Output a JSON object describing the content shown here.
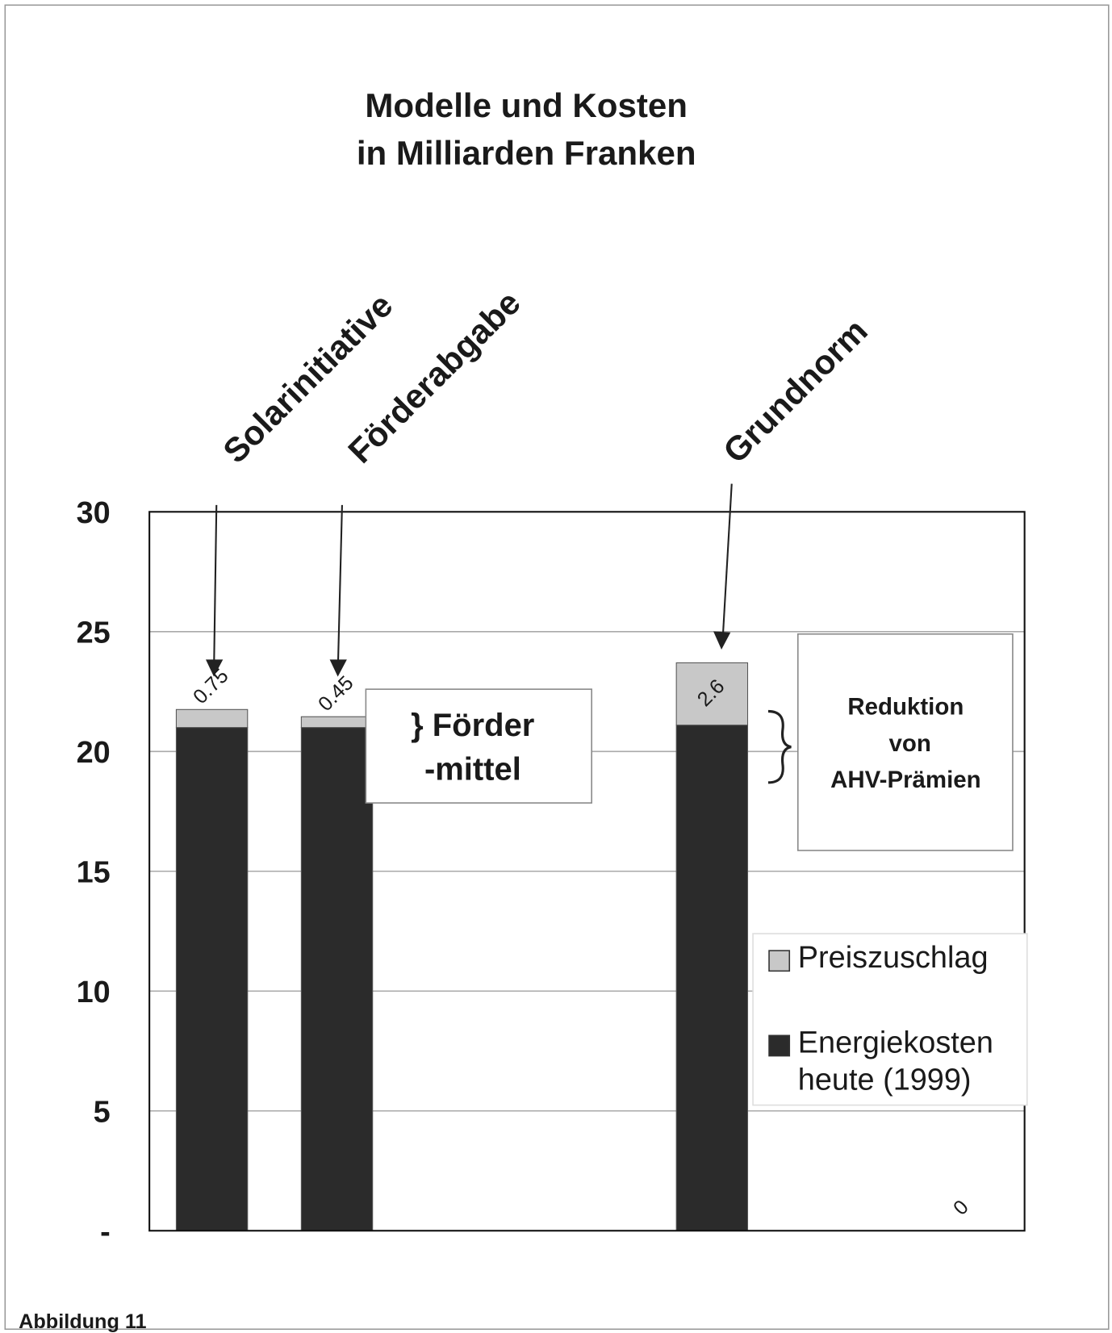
{
  "chart_data": {
    "type": "bar",
    "stacked": true,
    "title": [
      "Modelle und Kosten",
      "in Milliarden Franken"
    ],
    "caption": "Abbildung 11",
    "categories": [
      "Solarinitiative",
      "Förderabgabe",
      null,
      null,
      "Grundnorm",
      null,
      null
    ],
    "series": [
      {
        "name": "Energiekosten heute (1999)",
        "color": "#2b2b2b",
        "values": [
          21,
          21,
          null,
          null,
          21.1,
          null,
          null
        ]
      },
      {
        "name": "Preiszuschlag",
        "color": "#c8c8c8",
        "values": [
          0.75,
          0.45,
          null,
          null,
          2.6,
          null,
          0
        ]
      }
    ],
    "ylim": [
      0,
      30
    ],
    "yticks": [
      {
        "value": 0,
        "label": "-"
      },
      5,
      10,
      15,
      20,
      25,
      30
    ],
    "grid": true,
    "legend": "right",
    "annotations": [
      {
        "lines": [
          "} Förder",
          "-mittel"
        ]
      },
      {
        "lines": [
          "Reduktion",
          "von",
          "AHV-Prämien"
        ]
      }
    ]
  }
}
